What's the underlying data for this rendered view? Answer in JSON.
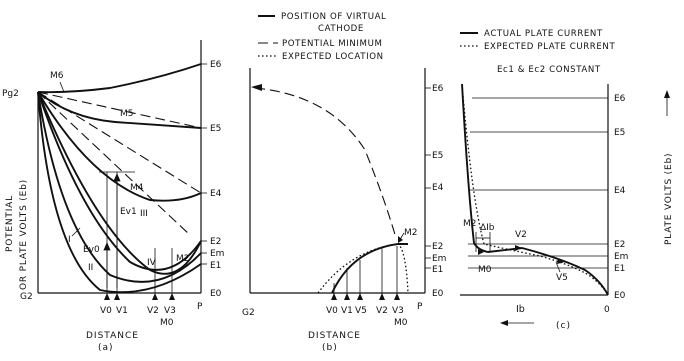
{
  "legend_b": {
    "solid": "POSITION OF VIRTUAL",
    "solid_2": "CATHODE",
    "dashed": "POTENTIAL MINIMUM",
    "dotted": "EXPECTED LOCATION"
  },
  "legend_c": {
    "solid": "ACTUAL PLATE CURRENT",
    "dotted": "EXPECTED PLATE CURRENT",
    "note": "Ec1 & Ec2 CONSTANT"
  },
  "panel_a": {
    "left_label": "Pg2",
    "origin_label": "G2",
    "plate_label": "P",
    "ylabel": "POTENTIAL",
    "ylabel_2": "OR PLATE VOLTS (Eb)",
    "xlabel": "DISTANCE",
    "caption": "(a)",
    "e_labels": [
      "E6",
      "E5",
      "E4",
      "E2",
      "Em",
      "E1",
      "E0"
    ],
    "m_labels": [
      "M6",
      "M5",
      "M4",
      "M2",
      "M0"
    ],
    "v_labels": [
      "V0",
      "V1",
      "V2",
      "V3"
    ],
    "roman": [
      "I",
      "II",
      "III",
      "IV"
    ],
    "ev0": "Ev0",
    "ev1": "Ev1"
  },
  "panel_b": {
    "origin_label": "G2",
    "plate_label": "P",
    "xlabel": "DISTANCE",
    "caption": "(b)",
    "e_labels": [
      "E6",
      "E5",
      "E4",
      "E2",
      "Em",
      "E1",
      "E0"
    ],
    "m_labels": [
      "M2",
      "M0"
    ],
    "v_labels": [
      "V0",
      "V1",
      "V5",
      "V2",
      "V3"
    ]
  },
  "panel_c": {
    "ylabel": "PLATE VOLTS (Eb)",
    "xlabel": "Ib",
    "zero": "0",
    "caption": "(c)",
    "e_labels": [
      "E6",
      "E5",
      "E4",
      "E2",
      "Em",
      "E1",
      "E0"
    ],
    "m_labels": [
      "M2",
      "M0"
    ],
    "v_labels": [
      "V2",
      "V5"
    ],
    "delta": "ΔIb"
  }
}
